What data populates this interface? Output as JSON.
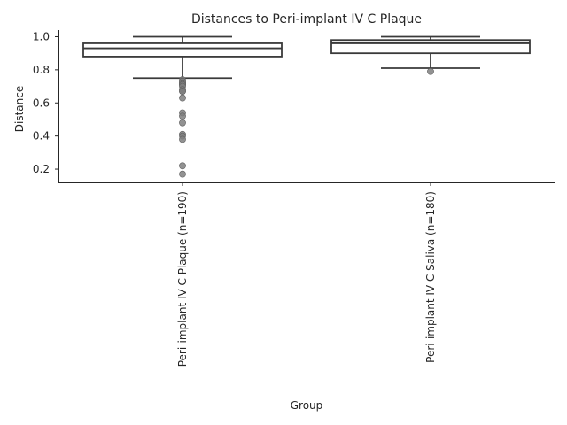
{
  "chart_data": {
    "type": "box",
    "title": "Distances to Peri-implant IV C Plaque",
    "xlabel": "Group",
    "ylabel": "Distance",
    "ylim": [
      0.12,
      1.04
    ],
    "yticks": [
      0.2,
      0.4,
      0.6,
      0.8,
      1.0
    ],
    "ytick_labels": [
      "0.2",
      "0.4",
      "0.6",
      "0.8",
      "1.0"
    ],
    "grid": false,
    "categories": [
      "Peri-implant IV C Plaque (n=190)",
      "Peri-implant IV C Saliva (n=180)"
    ],
    "series": [
      {
        "category": "Peri-implant IV C Plaque (n=190)",
        "whisker_low": 0.75,
        "q1": 0.88,
        "median": 0.93,
        "q3": 0.96,
        "whisker_high": 1.0,
        "outliers": [
          0.74,
          0.73,
          0.72,
          0.72,
          0.71,
          0.71,
          0.7,
          0.68,
          0.67,
          0.67,
          0.63,
          0.54,
          0.52,
          0.48,
          0.41,
          0.4,
          0.38,
          0.22,
          0.17
        ]
      },
      {
        "category": "Peri-implant IV C Saliva (n=180)",
        "whisker_low": 0.81,
        "q1": 0.9,
        "median": 0.96,
        "q3": 0.98,
        "whisker_high": 1.0,
        "outliers": [
          0.79
        ]
      }
    ]
  }
}
